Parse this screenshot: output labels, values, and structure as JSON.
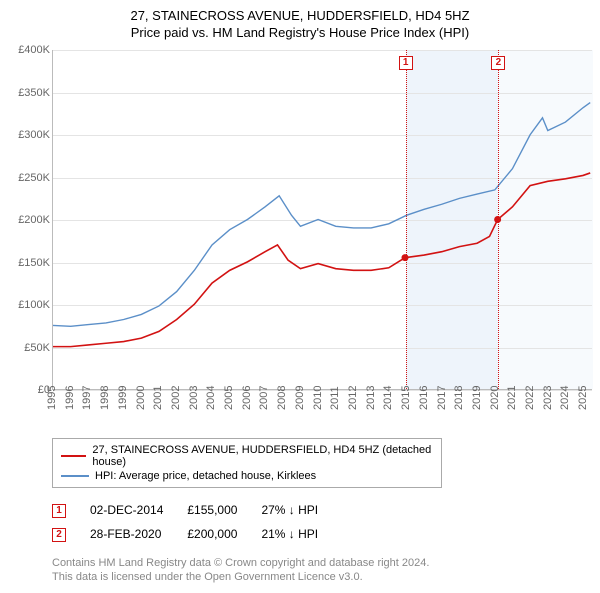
{
  "title": "27, STAINECROSS AVENUE, HUDDERSFIELD, HD4 5HZ",
  "subtitle": "Price paid vs. HM Land Registry's House Price Index (HPI)",
  "chart": {
    "type": "line",
    "background_color": "#ffffff",
    "grid_color": "#e4e4e4",
    "axis_color": "#bbbbbb",
    "x_range": [
      1995,
      2025.5
    ],
    "xticks": [
      1995,
      1996,
      1997,
      1998,
      1999,
      2000,
      2001,
      2002,
      2003,
      2004,
      2005,
      2006,
      2007,
      2008,
      2009,
      2010,
      2011,
      2012,
      2013,
      2014,
      2015,
      2016,
      2017,
      2018,
      2019,
      2020,
      2021,
      2022,
      2023,
      2024,
      2025
    ],
    "y_range": [
      0,
      400000
    ],
    "yticks": [
      0,
      50000,
      100000,
      150000,
      200000,
      250000,
      300000,
      350000,
      400000
    ],
    "ytick_labels": [
      "£0",
      "£50K",
      "£100K",
      "£150K",
      "£200K",
      "£250K",
      "£300K",
      "£350K",
      "£400K"
    ],
    "band1": {
      "start": 2014.92,
      "end": 2020.16,
      "color": "#eef4fb"
    },
    "band2": {
      "start": 2020.16,
      "end": 2025.5,
      "color": "#f7fafd"
    },
    "series_property": {
      "color": "#d21212",
      "width": 1.6,
      "points": [
        [
          1995,
          50000
        ],
        [
          1996,
          50000
        ],
        [
          1997,
          52000
        ],
        [
          1998,
          54000
        ],
        [
          1999,
          56000
        ],
        [
          2000,
          60000
        ],
        [
          2001,
          68000
        ],
        [
          2002,
          82000
        ],
        [
          2003,
          100000
        ],
        [
          2004,
          125000
        ],
        [
          2005,
          140000
        ],
        [
          2006,
          150000
        ],
        [
          2007,
          162000
        ],
        [
          2007.7,
          170000
        ],
        [
          2008.3,
          152000
        ],
        [
          2009,
          142000
        ],
        [
          2010,
          148000
        ],
        [
          2011,
          142000
        ],
        [
          2012,
          140000
        ],
        [
          2013,
          140000
        ],
        [
          2014,
          143000
        ],
        [
          2014.92,
          155000
        ],
        [
          2016,
          158000
        ],
        [
          2017,
          162000
        ],
        [
          2018,
          168000
        ],
        [
          2019,
          172000
        ],
        [
          2019.7,
          180000
        ],
        [
          2020.16,
          200000
        ],
        [
          2021,
          215000
        ],
        [
          2022,
          240000
        ],
        [
          2023,
          245000
        ],
        [
          2024,
          248000
        ],
        [
          2025,
          252000
        ],
        [
          2025.4,
          255000
        ]
      ]
    },
    "series_hpi": {
      "color": "#5b8fc8",
      "width": 1.4,
      "points": [
        [
          1995,
          75000
        ],
        [
          1996,
          74000
        ],
        [
          1997,
          76000
        ],
        [
          1998,
          78000
        ],
        [
          1999,
          82000
        ],
        [
          2000,
          88000
        ],
        [
          2001,
          98000
        ],
        [
          2002,
          115000
        ],
        [
          2003,
          140000
        ],
        [
          2004,
          170000
        ],
        [
          2005,
          188000
        ],
        [
          2006,
          200000
        ],
        [
          2007,
          215000
        ],
        [
          2007.8,
          228000
        ],
        [
          2008.5,
          205000
        ],
        [
          2009,
          192000
        ],
        [
          2010,
          200000
        ],
        [
          2011,
          192000
        ],
        [
          2012,
          190000
        ],
        [
          2013,
          190000
        ],
        [
          2014,
          195000
        ],
        [
          2015,
          205000
        ],
        [
          2016,
          212000
        ],
        [
          2017,
          218000
        ],
        [
          2018,
          225000
        ],
        [
          2019,
          230000
        ],
        [
          2020,
          235000
        ],
        [
          2021,
          260000
        ],
        [
          2022,
          300000
        ],
        [
          2022.7,
          320000
        ],
        [
          2023,
          305000
        ],
        [
          2024,
          315000
        ],
        [
          2025,
          332000
        ],
        [
          2025.4,
          338000
        ]
      ]
    },
    "sale_markers": [
      {
        "n": "1",
        "x": 2014.92,
        "y": 155000,
        "box_color": "#d21212"
      },
      {
        "n": "2",
        "x": 2020.16,
        "y": 200000,
        "box_color": "#d21212"
      }
    ]
  },
  "legend": {
    "rows": [
      {
        "color": "#d21212",
        "width": 2,
        "label": "27, STAINECROSS AVENUE, HUDDERSFIELD, HD4 5HZ (detached house)"
      },
      {
        "color": "#5b8fc8",
        "width": 2,
        "label": "HPI: Average price, detached house, Kirklees"
      }
    ]
  },
  "sales": [
    {
      "n": "1",
      "marker_color": "#d21212",
      "date": "02-DEC-2014",
      "price": "£155,000",
      "delta": "27% ↓ HPI"
    },
    {
      "n": "2",
      "marker_color": "#d21212",
      "date": "28-FEB-2020",
      "price": "£200,000",
      "delta": "21% ↓ HPI"
    }
  ],
  "footer": {
    "line1": "Contains HM Land Registry data © Crown copyright and database right 2024.",
    "line2": "This data is licensed under the Open Government Licence v3.0."
  }
}
